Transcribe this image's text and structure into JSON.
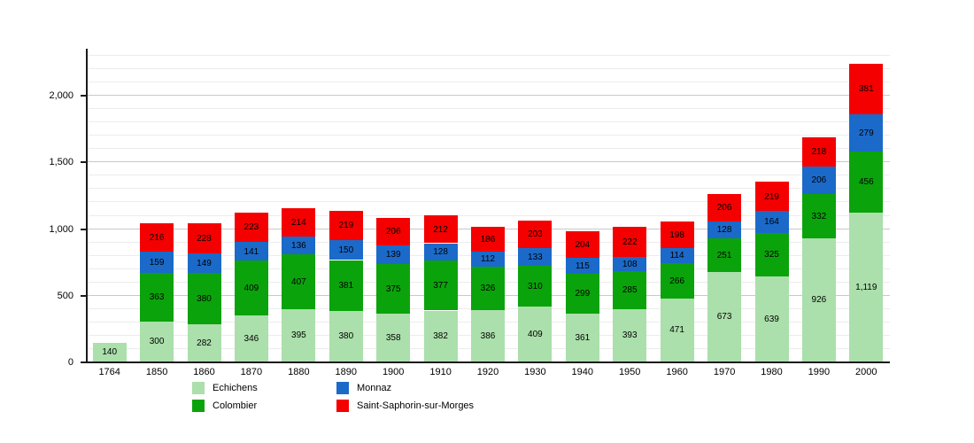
{
  "chart_data": {
    "type": "bar",
    "stacked": true,
    "title": "",
    "xlabel": "",
    "ylabel": "",
    "categories": [
      "1764",
      "1850",
      "1860",
      "1870",
      "1880",
      "1890",
      "1900",
      "1910",
      "1920",
      "1930",
      "1940",
      "1950",
      "1960",
      "1970",
      "1980",
      "1990",
      "2000"
    ],
    "series": [
      {
        "name": "Echichens",
        "color": "#abdfab",
        "values": [
          140,
          300,
          282,
          346,
          395,
          380,
          358,
          382,
          386,
          409,
          361,
          393,
          471,
          673,
          639,
          926,
          1119
        ]
      },
      {
        "name": "Colombier",
        "color": "#0ba30b",
        "values": [
          null,
          363,
          380,
          409,
          407,
          381,
          375,
          377,
          326,
          310,
          299,
          285,
          266,
          251,
          325,
          332,
          456
        ]
      },
      {
        "name": "Monnaz",
        "color": "#1b6ac9",
        "values": [
          null,
          159,
          149,
          141,
          136,
          150,
          139,
          128,
          112,
          133,
          115,
          108,
          114,
          128,
          164,
          206,
          279
        ]
      },
      {
        "name": "Saint-Saphorin-sur-Morges",
        "color": "#f40000",
        "values": [
          null,
          216,
          228,
          223,
          214,
          219,
          206,
          212,
          186,
          203,
          204,
          222,
          198,
          206,
          219,
          218,
          381
        ]
      }
    ],
    "y_ticks": [
      0,
      500,
      1000,
      1500,
      2000
    ],
    "ylim": [
      0,
      2350
    ],
    "minor_grid_step": 100,
    "major_grid_step": 500,
    "grid": true,
    "legend_position": "bottom",
    "value_labels_on_segments": true,
    "thousands_separator": ","
  },
  "legend": {
    "items": [
      "Echichens",
      "Colombier",
      "Monnaz",
      "Saint-Saphorin-sur-Morges"
    ]
  }
}
